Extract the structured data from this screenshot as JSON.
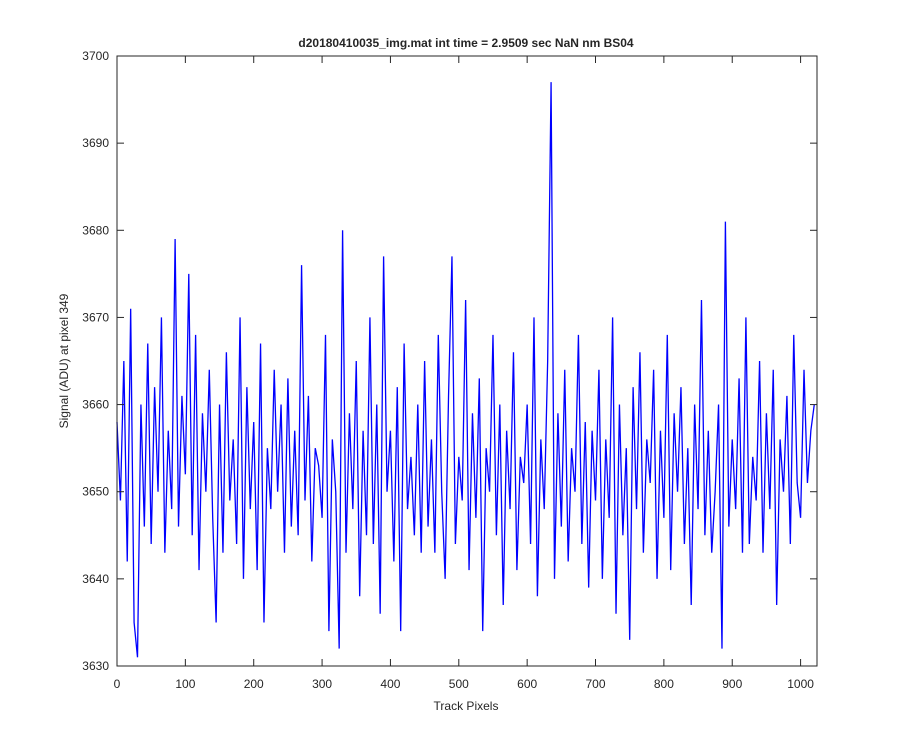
{
  "chart_data": {
    "type": "line",
    "title": "d20180410035_img.mat int time = 2.9509 sec  NaN nm BS04",
    "xlabel": "Track Pixels",
    "ylabel": "Signal (ADU) at pixel 349",
    "color": "#0000ff",
    "xlim": [
      0,
      1024
    ],
    "ylim": [
      3630,
      3700
    ],
    "xticks": [
      0,
      100,
      200,
      300,
      400,
      500,
      600,
      700,
      800,
      900,
      1000
    ],
    "yticks": [
      3630,
      3640,
      3650,
      3660,
      3670,
      3680,
      3690,
      3700
    ],
    "x": [
      0,
      5,
      10,
      15,
      20,
      25,
      30,
      35,
      40,
      45,
      50,
      55,
      60,
      65,
      70,
      75,
      80,
      85,
      90,
      95,
      100,
      105,
      110,
      115,
      120,
      125,
      130,
      135,
      140,
      145,
      150,
      155,
      160,
      165,
      170,
      175,
      180,
      185,
      190,
      195,
      200,
      205,
      210,
      215,
      220,
      225,
      230,
      235,
      240,
      245,
      250,
      255,
      260,
      265,
      270,
      275,
      280,
      285,
      290,
      295,
      300,
      305,
      310,
      315,
      320,
      325,
      330,
      335,
      340,
      345,
      350,
      355,
      360,
      365,
      370,
      375,
      380,
      385,
      390,
      395,
      400,
      405,
      410,
      415,
      420,
      425,
      430,
      435,
      440,
      445,
      450,
      455,
      460,
      465,
      470,
      475,
      480,
      485,
      490,
      495,
      500,
      505,
      510,
      515,
      520,
      525,
      530,
      535,
      540,
      545,
      550,
      555,
      560,
      565,
      570,
      575,
      580,
      585,
      590,
      595,
      600,
      605,
      610,
      615,
      620,
      625,
      630,
      635,
      640,
      645,
      650,
      655,
      660,
      665,
      670,
      675,
      680,
      685,
      690,
      695,
      700,
      705,
      710,
      715,
      720,
      725,
      730,
      735,
      740,
      745,
      750,
      755,
      760,
      765,
      770,
      775,
      780,
      785,
      790,
      795,
      800,
      805,
      810,
      815,
      820,
      825,
      830,
      835,
      840,
      845,
      850,
      855,
      860,
      865,
      870,
      875,
      880,
      885,
      890,
      895,
      900,
      905,
      910,
      915,
      920,
      925,
      930,
      935,
      940,
      945,
      950,
      955,
      960,
      965,
      970,
      975,
      980,
      985,
      990,
      995,
      1000,
      1005,
      1010,
      1015,
      1020
    ],
    "values": [
      3658,
      3649,
      3665,
      3642,
      3671,
      3635,
      3631,
      3660,
      3646,
      3667,
      3644,
      3662,
      3650,
      3670,
      3643,
      3657,
      3648,
      3679,
      3646,
      3661,
      3652,
      3675,
      3645,
      3668,
      3641,
      3659,
      3650,
      3664,
      3647,
      3635,
      3660,
      3643,
      3666,
      3649,
      3656,
      3644,
      3670,
      3640,
      3662,
      3648,
      3658,
      3641,
      3667,
      3635,
      3655,
      3648,
      3664,
      3650,
      3660,
      3643,
      3663,
      3646,
      3657,
      3645,
      3676,
      3649,
      3661,
      3642,
      3655,
      3653,
      3647,
      3668,
      3634,
      3656,
      3650,
      3632,
      3680,
      3643,
      3659,
      3648,
      3665,
      3638,
      3657,
      3645,
      3670,
      3644,
      3660,
      3636,
      3677,
      3650,
      3657,
      3642,
      3662,
      3634,
      3667,
      3648,
      3654,
      3645,
      3660,
      3643,
      3665,
      3646,
      3656,
      3643,
      3668,
      3650,
      3640,
      3661,
      3677,
      3644,
      3654,
      3649,
      3672,
      3641,
      3659,
      3647,
      3663,
      3634,
      3655,
      3650,
      3668,
      3645,
      3660,
      3637,
      3657,
      3648,
      3666,
      3641,
      3654,
      3651,
      3660,
      3644,
      3670,
      3638,
      3656,
      3648,
      3665,
      3697,
      3640,
      3659,
      3646,
      3664,
      3642,
      3655,
      3650,
      3668,
      3644,
      3658,
      3639,
      3657,
      3649,
      3664,
      3640,
      3656,
      3647,
      3670,
      3636,
      3660,
      3645,
      3655,
      3633,
      3662,
      3648,
      3666,
      3643,
      3656,
      3651,
      3664,
      3640,
      3657,
      3647,
      3668,
      3641,
      3659,
      3650,
      3662,
      3644,
      3655,
      3637,
      3660,
      3648,
      3672,
      3645,
      3657,
      3643,
      3650,
      3660,
      3632,
      3681,
      3646,
      3656,
      3648,
      3663,
      3643,
      3670,
      3644,
      3654,
      3649,
      3665,
      3643,
      3659,
      3648,
      3664,
      3637,
      3656,
      3650,
      3661,
      3644,
      3668,
      3651,
      3647,
      3664,
      3651,
      3657,
      3660
    ]
  }
}
